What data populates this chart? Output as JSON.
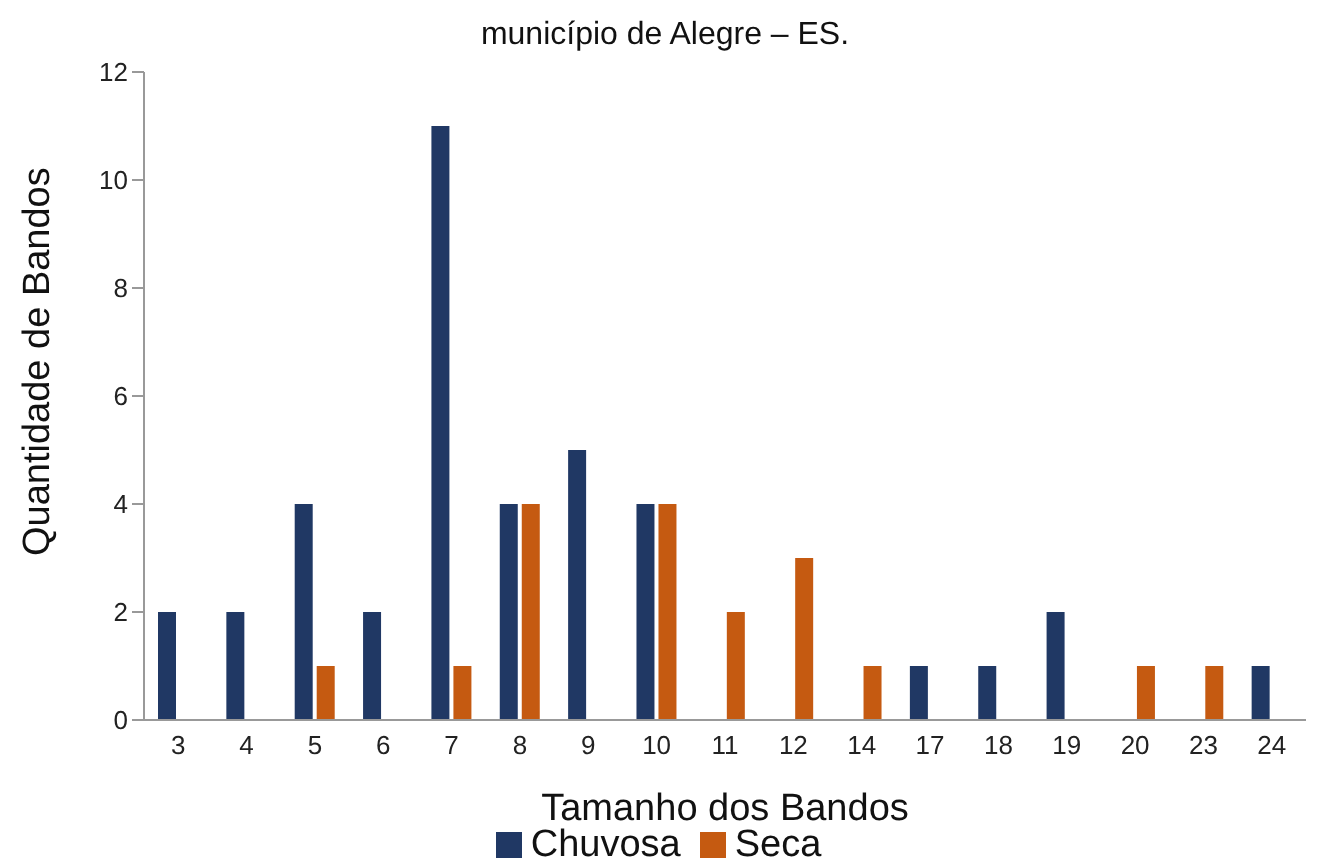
{
  "chart_data": {
    "type": "bar",
    "title": "município de Alegre – ES.",
    "xlabel": "Tamanho dos Bandos",
    "ylabel": "Quantidade de Bandos",
    "categories": [
      "3",
      "4",
      "5",
      "6",
      "7",
      "8",
      "9",
      "10",
      "11",
      "12",
      "14",
      "17",
      "18",
      "19",
      "20",
      "23",
      "24"
    ],
    "series": [
      {
        "name": "Chuvosa",
        "color": "#203864",
        "values": [
          2,
          2,
          4,
          2,
          11,
          4,
          5,
          4,
          0,
          0,
          0,
          1,
          1,
          2,
          0,
          0,
          1
        ]
      },
      {
        "name": "Seca",
        "color": "#c55a11",
        "values": [
          0,
          0,
          1,
          0,
          1,
          4,
          0,
          4,
          2,
          3,
          1,
          0,
          0,
          0,
          1,
          1,
          0
        ]
      }
    ],
    "ylim": [
      0,
      12
    ],
    "yticks": [
      0,
      2,
      4,
      6,
      8,
      10,
      12
    ],
    "grid": false,
    "legend": "bottom"
  }
}
